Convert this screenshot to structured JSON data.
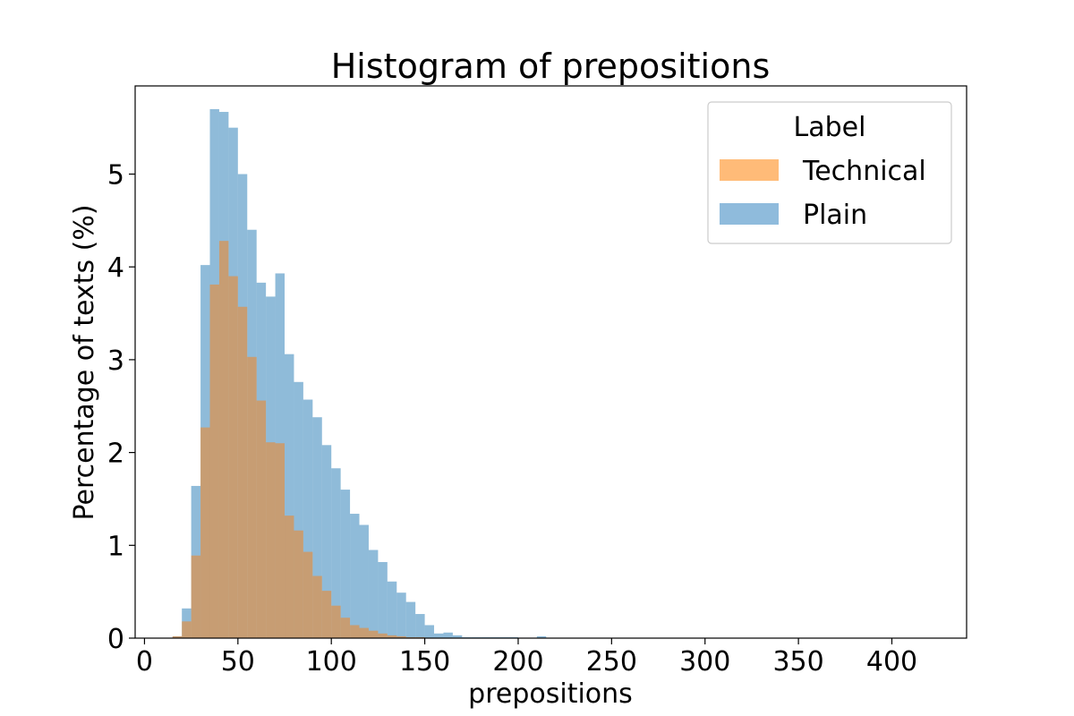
{
  "chart_data": {
    "type": "bar",
    "title": "Histogram of prepositions",
    "xlabel": "prepositions",
    "ylabel": "Percentage of texts (%)",
    "xlim": [
      -5,
      440
    ],
    "ylim": [
      0,
      5.95
    ],
    "xticks": [
      0,
      50,
      100,
      150,
      200,
      250,
      300,
      350,
      400
    ],
    "yticks": [
      0,
      1,
      2,
      3,
      4,
      5
    ],
    "bin_width": 5,
    "grid": false,
    "legend": {
      "title": "Label",
      "position": "top-right",
      "entries": [
        {
          "label": "Technical",
          "color": "#ffbb78"
        },
        {
          "label": "Plain",
          "color": "#8fbbdc"
        }
      ]
    },
    "series": [
      {
        "name": "Plain",
        "color": "#1f77b4",
        "opacity": 0.5,
        "bin_start": [
          15,
          20,
          25,
          30,
          35,
          40,
          45,
          50,
          55,
          60,
          65,
          70,
          75,
          80,
          85,
          90,
          95,
          100,
          105,
          110,
          115,
          120,
          125,
          130,
          135,
          140,
          145,
          150,
          155,
          160,
          165,
          170,
          175,
          180,
          185,
          190,
          195,
          200,
          205,
          210
        ],
        "values": [
          0.02,
          0.32,
          1.64,
          4.02,
          5.7,
          5.67,
          5.5,
          5.0,
          4.4,
          3.83,
          3.68,
          3.93,
          3.06,
          2.76,
          2.57,
          2.38,
          2.08,
          1.83,
          1.6,
          1.34,
          1.22,
          0.95,
          0.82,
          0.61,
          0.49,
          0.39,
          0.26,
          0.14,
          0.05,
          0.06,
          0.03,
          0.01,
          0.01,
          0.01,
          0.01,
          0.01,
          0.01,
          0.005,
          0.005,
          0.02
        ]
      },
      {
        "name": "Technical",
        "color": "#ff7f0e",
        "opacity": 0.5,
        "bin_start": [
          15,
          20,
          25,
          30,
          35,
          40,
          45,
          50,
          55,
          60,
          65,
          70,
          75,
          80,
          85,
          90,
          95,
          100,
          105,
          110,
          115,
          120,
          125,
          130,
          135,
          140,
          145,
          150,
          155
        ],
        "values": [
          0.02,
          0.18,
          0.89,
          2.27,
          3.81,
          4.28,
          3.9,
          3.57,
          3.03,
          2.56,
          2.11,
          2.1,
          1.32,
          1.16,
          0.93,
          0.67,
          0.51,
          0.35,
          0.22,
          0.14,
          0.11,
          0.08,
          0.05,
          0.03,
          0.02,
          0.01,
          0.01,
          0.005,
          0.005
        ]
      }
    ]
  }
}
